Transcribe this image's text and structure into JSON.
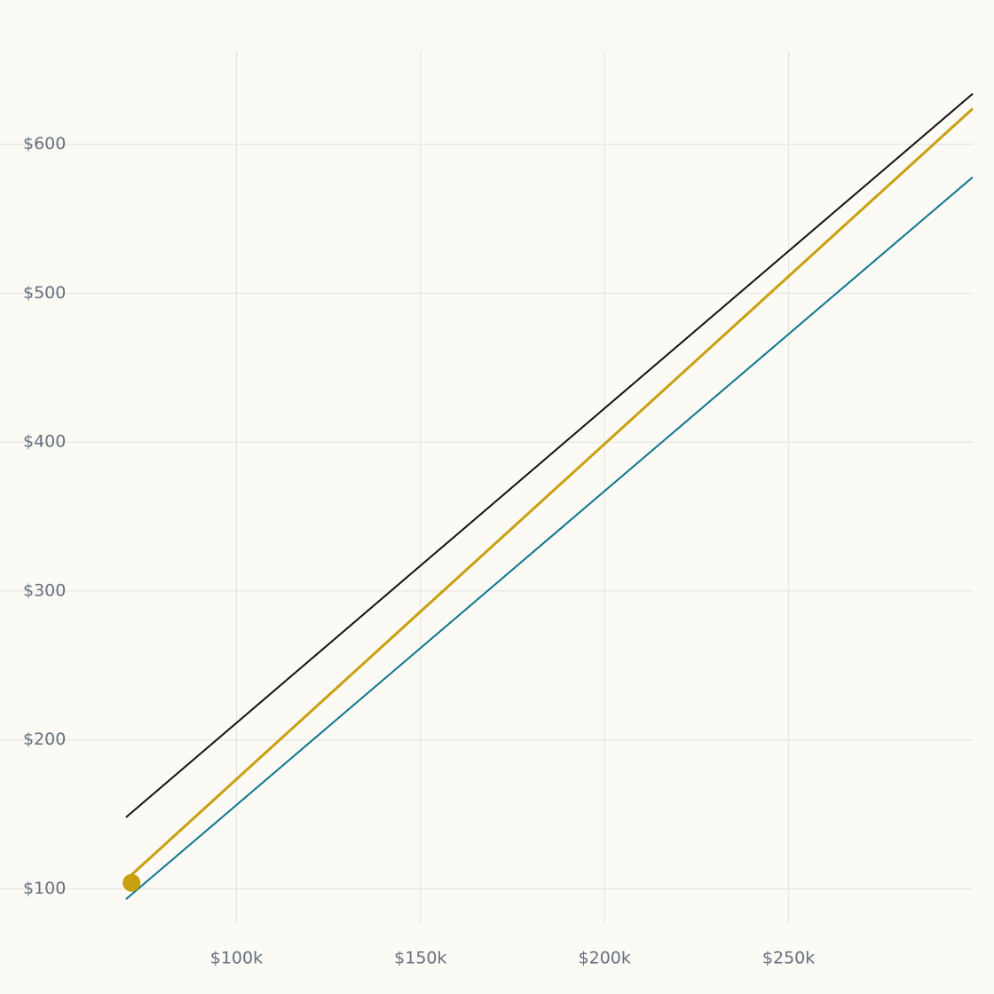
{
  "chart_data": {
    "type": "line",
    "x": [
      70000,
      300000
    ],
    "series": [
      {
        "color": "#111111",
        "values": [
          148,
          634
        ]
      },
      {
        "color": "#c9a010",
        "values": [
          106,
          624
        ]
      },
      {
        "color": "#0e7490",
        "values": [
          93,
          578
        ]
      }
    ],
    "marker": {
      "x": 71500,
      "y": 104,
      "color": "#c9a010"
    },
    "xlim": [
      70000,
      300000
    ],
    "ylim": [
      77,
      663
    ],
    "xticks": [
      {
        "value": 100000,
        "label": "$100k"
      },
      {
        "value": 150000,
        "label": "$150k"
      },
      {
        "value": 200000,
        "label": "$200k"
      },
      {
        "value": 250000,
        "label": "$250k"
      }
    ],
    "yticks": [
      {
        "value": 100,
        "label": "$100"
      },
      {
        "value": 200,
        "label": "$200"
      },
      {
        "value": 300,
        "label": "$300"
      },
      {
        "value": 400,
        "label": "$400"
      },
      {
        "value": 500,
        "label": "$500"
      },
      {
        "value": 600,
        "label": "$600"
      }
    ],
    "grid": true
  }
}
